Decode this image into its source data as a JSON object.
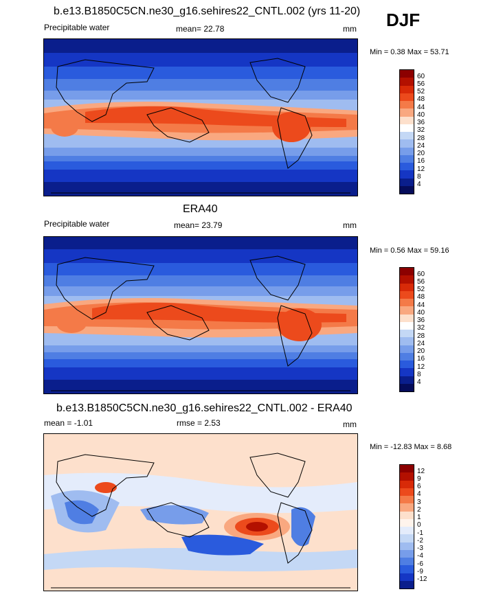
{
  "season": "DJF",
  "panels": [
    {
      "title": "b.e13.B1850C5CN.ne30_g16.sehires22_CNTL.002 (yrs 11-20)",
      "left_label": "Precipitable water",
      "mid_label": "mean=  22.78",
      "units": "mm",
      "minmax": "Min =   0.38 Max =  53.71",
      "colorbar_labels": [
        "60",
        "56",
        "52",
        "48",
        "44",
        "40",
        "36",
        "32",
        "28",
        "24",
        "20",
        "16",
        "12",
        "8",
        "4"
      ],
      "colors": [
        "#8c0000",
        "#b31000",
        "#d82a08",
        "#ec4a1c",
        "#f47a48",
        "#f9a880",
        "#fde0cc",
        "#ffffff",
        "#c4d8f5",
        "#9fbcf0",
        "#779dea",
        "#4f7ee3",
        "#2a5bdd",
        "#1536c4",
        "#0a1e8c",
        "#050c5a"
      ]
    },
    {
      "title": "ERA40",
      "left_label": "Precipitable water",
      "mid_label": "mean=  23.79",
      "units": "mm",
      "minmax": "Min =   0.56 Max =  59.16",
      "colorbar_labels": [
        "60",
        "56",
        "52",
        "48",
        "44",
        "40",
        "36",
        "32",
        "28",
        "24",
        "20",
        "16",
        "12",
        "8",
        "4"
      ],
      "colors": [
        "#8c0000",
        "#b31000",
        "#d82a08",
        "#ec4a1c",
        "#f47a48",
        "#f9a880",
        "#fde0cc",
        "#ffffff",
        "#c4d8f5",
        "#9fbcf0",
        "#779dea",
        "#4f7ee3",
        "#2a5bdd",
        "#1536c4",
        "#0a1e8c",
        "#050c5a"
      ]
    },
    {
      "title": "b.e13.B1850C5CN.ne30_g16.sehires22_CNTL.002 - ERA40",
      "left_label": "mean =  -1.01",
      "mid_label": "rmse =   2.53",
      "units": "mm",
      "minmax": "Min = -12.83 Max =   8.68",
      "colorbar_labels": [
        "12",
        "9",
        "6",
        "4",
        "3",
        "2",
        "1",
        "0",
        "-1",
        "-2",
        "-3",
        "-4",
        "-6",
        "-9",
        "-12"
      ],
      "colors": [
        "#8c0000",
        "#b31000",
        "#d82a08",
        "#ec4a1c",
        "#f47a48",
        "#f9a880",
        "#fde0cc",
        "#fff4ec",
        "#e4ecfb",
        "#c4d8f5",
        "#9fbcf0",
        "#779dea",
        "#4f7ee3",
        "#2a5bdd",
        "#1536c4",
        "#0a1e8c"
      ]
    }
  ]
}
